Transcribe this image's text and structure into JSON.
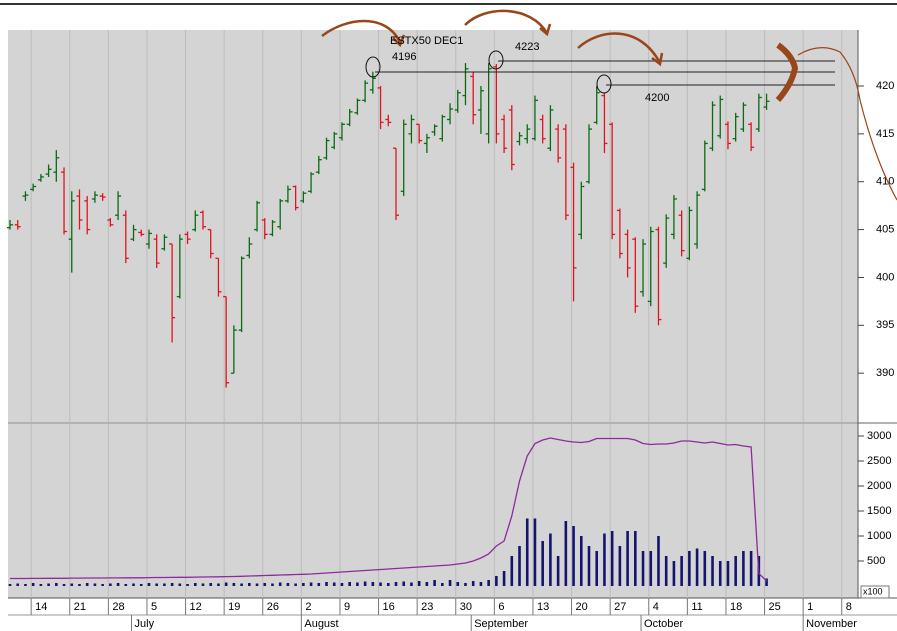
{
  "chart_data": [
    {
      "type": "ohlc",
      "title": "ESTX50 DEC1",
      "annotations": [
        "4196",
        "4223",
        "4200"
      ],
      "categories": [
        null,
        null,
        null,
        "14",
        null,
        null,
        null,
        null,
        "21",
        null,
        null,
        null,
        null,
        "28",
        null,
        null,
        null,
        null,
        "5",
        null,
        null,
        null,
        null,
        "12",
        null,
        null,
        null,
        null,
        "19",
        null,
        null,
        null,
        null,
        "26",
        null,
        null,
        null,
        null,
        "2",
        null,
        null,
        null,
        null,
        "9",
        null,
        null,
        null,
        null,
        "16",
        null,
        null,
        null,
        null,
        "23",
        null,
        null,
        null,
        null,
        "30",
        null,
        null,
        null,
        null,
        "6",
        null,
        null,
        null,
        null,
        "13",
        null,
        null,
        null,
        null,
        "20",
        null,
        null,
        null,
        null,
        "27",
        null,
        null,
        null,
        null,
        "4",
        null,
        null,
        null,
        null,
        "11",
        null,
        null,
        null,
        null,
        "18",
        null,
        null,
        null,
        null,
        "25",
        null,
        null,
        null,
        null,
        "1",
        null,
        null,
        null,
        null,
        "8",
        null,
        null
      ],
      "months": [
        {
          "name": "July",
          "start": 16
        },
        {
          "name": "August",
          "start": 38
        },
        {
          "name": "September",
          "start": 60
        },
        {
          "name": "October",
          "start": 82
        },
        {
          "name": "November",
          "start": 103
        }
      ],
      "open": [
        405.2,
        405.5,
        408.5,
        409.2,
        410.2,
        410.8,
        411,
        411,
        404,
        408.5,
        408,
        408.2,
        408.5,
        406,
        406.5,
        406.5,
        404,
        404.7,
        403.5,
        404,
        403,
        403.5,
        398,
        404.5,
        405,
        406.8,
        405,
        402,
        398,
        390,
        394.5,
        402.3,
        405,
        406,
        404.5,
        405.3,
        408,
        409.5,
        408,
        409,
        411,
        412.5,
        413.6,
        414.6,
        416,
        417.2,
        418.5,
        419.6,
        419.8,
        416.5,
        413.5,
        409,
        415,
        416,
        414,
        415.2,
        414.5,
        416.5,
        417.5,
        419,
        421,
        417.5,
        415,
        422,
        416.5,
        417.5,
        414.2,
        414.5,
        414.5,
        416.5,
        413.5,
        415.5,
        415.5,
        411.5,
        404.5,
        410,
        416.2,
        419,
        416,
        407,
        404.5,
        404,
        398.5,
        397.5,
        405,
        401.5,
        404.5,
        406.5,
        402,
        403.5,
        409.2,
        413.5,
        414.8,
        416,
        414.5,
        415.5,
        416,
        415.5,
        417.8,
        null,
        null,
        null,
        null,
        null,
        null,
        null,
        null,
        null,
        null,
        null,
        null
      ],
      "high": [
        406,
        406,
        409,
        409.8,
        410.8,
        411.8,
        413.3,
        411.5,
        409,
        409.2,
        408.5,
        409,
        408.8,
        406.2,
        409,
        407,
        405.5,
        405,
        405,
        404.5,
        404.5,
        403.5,
        404.5,
        404.8,
        407,
        407,
        405,
        402,
        398,
        395,
        402.2,
        404.2,
        408,
        406.2,
        406,
        408.2,
        409.6,
        409.6,
        409,
        411,
        412.7,
        414.6,
        415.2,
        416.2,
        417.6,
        418.7,
        420.6,
        421.5,
        420,
        417,
        413.5,
        416.5,
        417,
        416,
        415,
        416,
        417,
        418.2,
        419.6,
        422.4,
        421.5,
        420,
        422.4,
        422.3,
        417,
        418,
        415.2,
        416,
        419,
        417,
        418,
        416,
        416,
        412,
        410,
        416,
        420,
        419.3,
        416.2,
        407.2,
        405,
        404.2,
        404,
        405.3,
        405.3,
        406.6,
        408.6,
        407,
        407.4,
        409,
        414.3,
        418.4,
        419,
        416.3,
        417.2,
        418.3,
        416.2,
        419.2,
        419.2,
        null,
        null,
        null,
        null,
        null,
        null,
        null,
        null,
        null,
        null,
        null,
        null
      ],
      "low": [
        405,
        405,
        408,
        409,
        410,
        410.5,
        410,
        404.5,
        400.5,
        405,
        404.5,
        407.8,
        408,
        405.3,
        406,
        401.5,
        403.8,
        404.3,
        403,
        401,
        402.8,
        393.2,
        397.8,
        403.5,
        404.8,
        405,
        402,
        398,
        388.5,
        390,
        394.3,
        402,
        404.8,
        404,
        404.3,
        405,
        407.8,
        407,
        407.8,
        408.8,
        410.8,
        412.3,
        413.4,
        414.3,
        415.8,
        417,
        418.3,
        419.2,
        415.5,
        415.8,
        406,
        408.5,
        414,
        414,
        413,
        414.8,
        414.2,
        416,
        417.2,
        418,
        416,
        415,
        414,
        414,
        413,
        411.2,
        413.8,
        414,
        414.3,
        414,
        413.2,
        412,
        406,
        397.5,
        404,
        409.8,
        416,
        413,
        404,
        402,
        400,
        396.3,
        398,
        397,
        395,
        401,
        404,
        402.2,
        401.8,
        403,
        409,
        413.2,
        414.5,
        413.4,
        414.2,
        415.2,
        413.2,
        415.2,
        417.5,
        null,
        null,
        null,
        null,
        null,
        null,
        null,
        null,
        null,
        null,
        null,
        null
      ],
      "close": [
        405.5,
        405.3,
        408.6,
        409.5,
        410.5,
        411.3,
        412.5,
        404.8,
        408,
        406,
        405,
        408.6,
        408.4,
        405.5,
        408.5,
        402,
        405,
        404.5,
        404.6,
        401.5,
        404.2,
        395.8,
        404,
        404,
        406.5,
        405.3,
        402.5,
        398.5,
        389,
        394.5,
        402,
        403.5,
        407.8,
        404.5,
        405.8,
        408,
        409.2,
        407.3,
        408.8,
        410.8,
        412.3,
        414.3,
        415,
        416,
        417.3,
        418.5,
        420.3,
        420.8,
        416.2,
        416.2,
        406.5,
        416,
        416.5,
        414.3,
        414.6,
        415.8,
        416.8,
        417.6,
        419.3,
        421.8,
        417,
        419.5,
        421.8,
        415,
        413.5,
        411.8,
        414.8,
        415.5,
        418.5,
        414.5,
        417.5,
        412.5,
        406.5,
        401,
        409.5,
        415.5,
        419.3,
        414,
        404.5,
        402.5,
        401,
        397,
        403.5,
        404.8,
        395.6,
        406.2,
        408.2,
        402.8,
        407,
        408.6,
        414,
        418,
        418.6,
        414,
        416.8,
        418,
        413.6,
        418.8,
        418.4,
        null,
        null,
        null,
        null,
        null,
        null,
        null,
        null,
        null,
        null,
        null,
        null
      ],
      "up_color": "#0a6b12",
      "down_color": "#e0141e",
      "ylim": [
        384.9,
        425.85
      ],
      "yticks": [
        390,
        395,
        400,
        405,
        410,
        415,
        420
      ]
    },
    {
      "type": "bar",
      "unit": "x100",
      "color": "#14146e",
      "line_color": "#8e2a9c",
      "values": [
        40,
        50,
        40,
        60,
        40,
        50,
        60,
        40,
        50,
        40,
        60,
        50,
        40,
        50,
        60,
        40,
        50,
        40,
        60,
        50,
        50,
        60,
        50,
        40,
        60,
        50,
        60,
        50,
        70,
        60,
        50,
        60,
        50,
        60,
        50,
        70,
        60,
        50,
        60,
        70,
        60,
        80,
        70,
        60,
        80,
        70,
        90,
        80,
        70,
        60,
        80,
        90,
        70,
        100,
        80,
        120,
        60,
        120,
        80,
        60,
        100,
        80,
        120,
        200,
        300,
        600,
        800,
        1350,
        1350,
        900,
        1050,
        600,
        1300,
        1200,
        1000,
        800,
        700,
        1050,
        1100,
        800,
        1100,
        1100,
        700,
        700,
        1000,
        600,
        500,
        600,
        700,
        750,
        700,
        600,
        500,
        500,
        600,
        700,
        700,
        600,
        150,
        null,
        null,
        null,
        null,
        null,
        null,
        null,
        null,
        null,
        null,
        null,
        null
      ],
      "open_interest": [
        150,
        150,
        150,
        152,
        152,
        155,
        155,
        155,
        158,
        158,
        160,
        160,
        160,
        162,
        162,
        165,
        165,
        165,
        168,
        170,
        170,
        172,
        175,
        175,
        178,
        180,
        182,
        185,
        188,
        190,
        195,
        200,
        205,
        210,
        215,
        220,
        225,
        230,
        235,
        240,
        250,
        260,
        270,
        280,
        290,
        300,
        310,
        320,
        330,
        340,
        350,
        360,
        370,
        380,
        390,
        400,
        410,
        420,
        440,
        460,
        500,
        560,
        640,
        800,
        900,
        1400,
        2100,
        2600,
        2850,
        2920,
        2960,
        2930,
        2900,
        2880,
        2870,
        2890,
        2950,
        2950,
        2950,
        2950,
        2950,
        2920,
        2850,
        2830,
        2840,
        2840,
        2860,
        2900,
        2900,
        2880,
        2860,
        2880,
        2850,
        2820,
        2830,
        2800,
        2780,
        250,
        100,
        null,
        null,
        null,
        null,
        null,
        null,
        null,
        null,
        null,
        null,
        null,
        null
      ],
      "ylim": [
        -240,
        3240
      ],
      "yticks": [
        500,
        1000,
        1500,
        2000,
        2500,
        3000
      ]
    }
  ]
}
